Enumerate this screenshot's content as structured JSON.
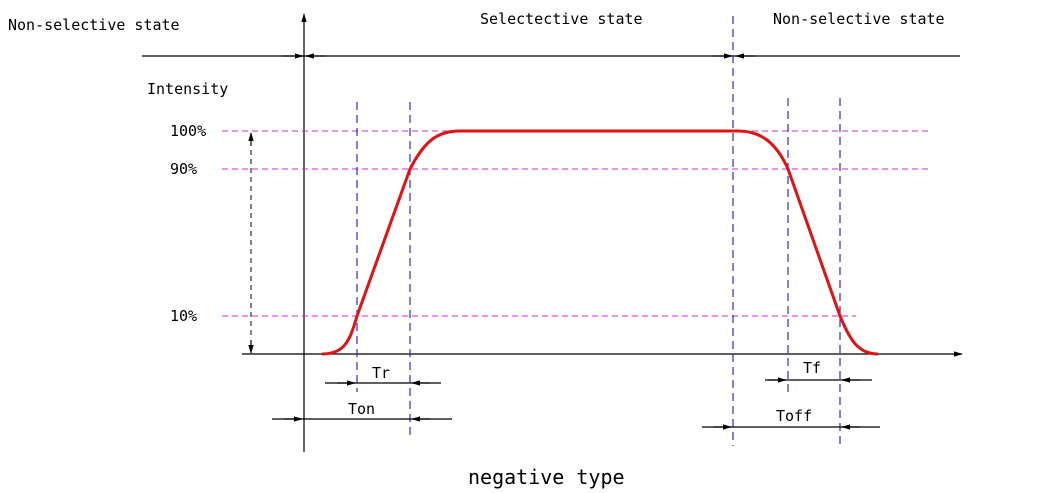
{
  "states": {
    "left": "Non-selective state",
    "middle": "Selectective state",
    "right": "Non-selective state"
  },
  "y_axis_label": "Intensity",
  "levels": [
    "100%",
    "90%",
    "10%"
  ],
  "timings": {
    "rise": "Tr",
    "on": "Ton",
    "fall": "Tf",
    "off": "Toff"
  },
  "caption": "negative type",
  "colors": {
    "curve": "#e31212",
    "guide_vertical": "#2b2bd6",
    "guide_level": "#d028d0",
    "axis": "#000000"
  }
}
